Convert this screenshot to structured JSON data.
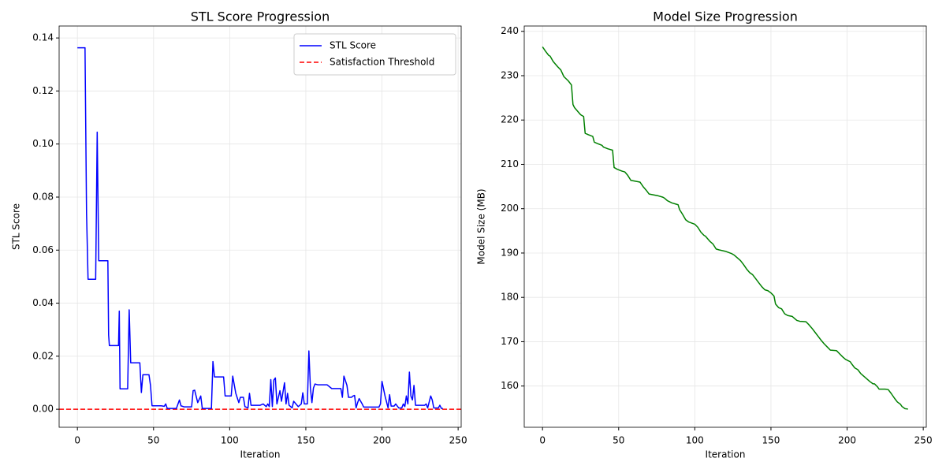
{
  "chart_data": [
    {
      "type": "line",
      "title": "STL Score Progression",
      "x_label": "Iteration",
      "y_label": "STL Score",
      "x": [
        0,
        5,
        6,
        7,
        12,
        13,
        14,
        20,
        20.5,
        21,
        27,
        27.5,
        28,
        33,
        34,
        35,
        41,
        42,
        43,
        47,
        48,
        49,
        55,
        57,
        58,
        59,
        65,
        67,
        68,
        70,
        75,
        76,
        77,
        79,
        81,
        82,
        88,
        89,
        90,
        96,
        97,
        101,
        102,
        104,
        106,
        107,
        109,
        110,
        112,
        113,
        114,
        120,
        122,
        124,
        125,
        126,
        127,
        128,
        129,
        130,
        131,
        133,
        134,
        136,
        137,
        138,
        139,
        141,
        142,
        145,
        147,
        148,
        149,
        151,
        152,
        153,
        154,
        155,
        156,
        158,
        164,
        167,
        173,
        174,
        175,
        177,
        178,
        180,
        181,
        182,
        183,
        184,
        185,
        187,
        188,
        198,
        199,
        200,
        202,
        204,
        205,
        206,
        208,
        209,
        211,
        213,
        214,
        215,
        216,
        217,
        218,
        219,
        220,
        221,
        222,
        228,
        229,
        230,
        232,
        233,
        234,
        237,
        238,
        239,
        240
      ],
      "series": [
        {
          "name": "STL Score",
          "color": "#0000ff",
          "values": [
            0.1363,
            0.1363,
            0.074,
            0.049,
            0.049,
            0.1045,
            0.056,
            0.056,
            0.028,
            0.024,
            0.024,
            0.037,
            0.0077,
            0.0077,
            0.0375,
            0.0175,
            0.0175,
            0.0063,
            0.013,
            0.013,
            0.009,
            0.0013,
            0.0013,
            0.0011,
            0.002,
            0.0003,
            0.0003,
            0.0035,
            0.0013,
            0.0009,
            0.0009,
            0.007,
            0.0072,
            0.0025,
            0.005,
            0.0003,
            0.0003,
            0.018,
            0.0122,
            0.0122,
            0.005,
            0.005,
            0.0125,
            0.006,
            0.0025,
            0.0045,
            0.0045,
            0.001,
            0.0005,
            0.006,
            0.0015,
            0.0015,
            0.002,
            0.001,
            0.002,
            0.001,
            0.0112,
            0.001,
            0.011,
            0.0118,
            0.002,
            0.007,
            0.003,
            0.01,
            0.002,
            0.006,
            0.0015,
            0.0005,
            0.003,
            0.001,
            0.002,
            0.0062,
            0.002,
            0.002,
            0.022,
            0.008,
            0.0025,
            0.008,
            0.0095,
            0.0092,
            0.0092,
            0.0078,
            0.0078,
            0.0045,
            0.0125,
            0.009,
            0.0045,
            0.0045,
            0.005,
            0.0052,
            0.0005,
            0.0025,
            0.004,
            0.002,
            0.0008,
            0.0008,
            0.002,
            0.0105,
            0.005,
            0.0005,
            0.0055,
            0.0012,
            0.0012,
            0.002,
            0.0005,
            0.0005,
            0.002,
            0.001,
            0.005,
            0.002,
            0.014,
            0.005,
            0.0035,
            0.009,
            0.0015,
            0.0015,
            0.002,
            0.0005,
            0.005,
            0.0035,
            0.0005,
            0.0005,
            0.0015,
            0.0003,
            0.0003
          ]
        }
      ],
      "threshold": {
        "name": "Satisfaction Threshold",
        "color": "#ff0000",
        "value": 0
      },
      "xlim": [
        -12,
        252
      ],
      "xticks": [
        0,
        50,
        100,
        150,
        200,
        250
      ],
      "ylim": [
        -0.0068,
        0.1445
      ],
      "yticks": [
        {
          "value": 0,
          "label": "0.00"
        },
        0.02,
        0.04,
        0.06,
        0.08,
        {
          "value": 0.1,
          "label": "0.10"
        },
        0.12,
        0.14
      ],
      "grid": true,
      "legend": "upper right"
    },
    {
      "type": "line",
      "title": "Model Size Progression",
      "x_label": "Iteration",
      "y_label": "Model Size (MB)",
      "x": [
        0,
        2,
        4,
        5,
        7,
        10,
        12,
        14,
        17,
        19,
        20,
        21,
        23,
        25,
        27,
        28,
        30,
        33,
        34,
        36,
        39,
        40,
        43,
        46,
        47,
        49,
        52,
        54,
        56,
        58,
        61,
        64,
        66,
        68,
        70,
        73,
        76,
        79,
        80,
        82,
        85,
        88,
        89,
        90,
        92,
        94,
        96,
        100,
        102,
        104,
        106,
        107,
        109,
        110,
        112,
        114,
        116,
        120,
        124,
        126,
        128,
        130,
        132,
        134,
        136,
        138,
        140,
        142,
        144,
        146,
        148,
        150,
        152,
        153,
        155,
        157,
        159,
        161,
        164,
        166,
        167,
        169,
        173,
        175,
        177,
        179,
        181,
        183,
        185,
        187,
        189,
        193,
        195,
        197,
        199,
        202,
        203,
        205,
        207,
        209,
        211,
        213,
        215,
        217,
        218,
        220,
        221,
        225,
        227,
        229,
        231,
        233,
        235,
        236,
        238,
        240
      ],
      "series": [
        {
          "color": "#008000",
          "values": [
            236.5,
            235.5,
            234.6,
            234.4,
            233.2,
            232,
            231.3,
            229.8,
            228.8,
            227.9,
            223.5,
            222.8,
            222,
            221.2,
            220.8,
            217,
            216.7,
            216.3,
            215,
            214.7,
            214.3,
            213.9,
            213.5,
            213.2,
            209.3,
            208.9,
            208.5,
            208.3,
            207.5,
            206.4,
            206.2,
            206,
            205,
            204.2,
            203.3,
            203.1,
            202.9,
            202.6,
            202.4,
            201.8,
            201.3,
            201,
            200.9,
            199.8,
            198.7,
            197.5,
            197,
            196.5,
            195.8,
            194.7,
            194,
            193.8,
            193,
            192.6,
            192,
            190.9,
            190.7,
            190.4,
            189.9,
            189.5,
            188.9,
            188.3,
            187.4,
            186.4,
            185.6,
            185.1,
            184.2,
            183.3,
            182.4,
            181.7,
            181.5,
            181,
            180.3,
            178.5,
            177.7,
            177.4,
            176.3,
            175.9,
            175.7,
            175.1,
            174.8,
            174.6,
            174.5,
            173.8,
            173,
            172.1,
            171.2,
            170.3,
            169.5,
            168.8,
            168.1,
            168,
            167.3,
            166.6,
            166,
            165.5,
            165,
            164.1,
            163.7,
            162.8,
            162.2,
            161.6,
            161,
            160.5,
            160.5,
            159.8,
            159.3,
            159.3,
            159.2,
            158.3,
            157.3,
            156.4,
            155.9,
            155.4,
            154.9,
            154.8
          ]
        }
      ],
      "xlim": [
        -12,
        252
      ],
      "xticks": [
        0,
        50,
        100,
        150,
        200,
        250
      ],
      "ylim": [
        150.7,
        241.2
      ],
      "yticks": [
        160,
        170,
        180,
        190,
        200,
        210,
        220,
        230,
        240
      ],
      "grid": true
    }
  ]
}
